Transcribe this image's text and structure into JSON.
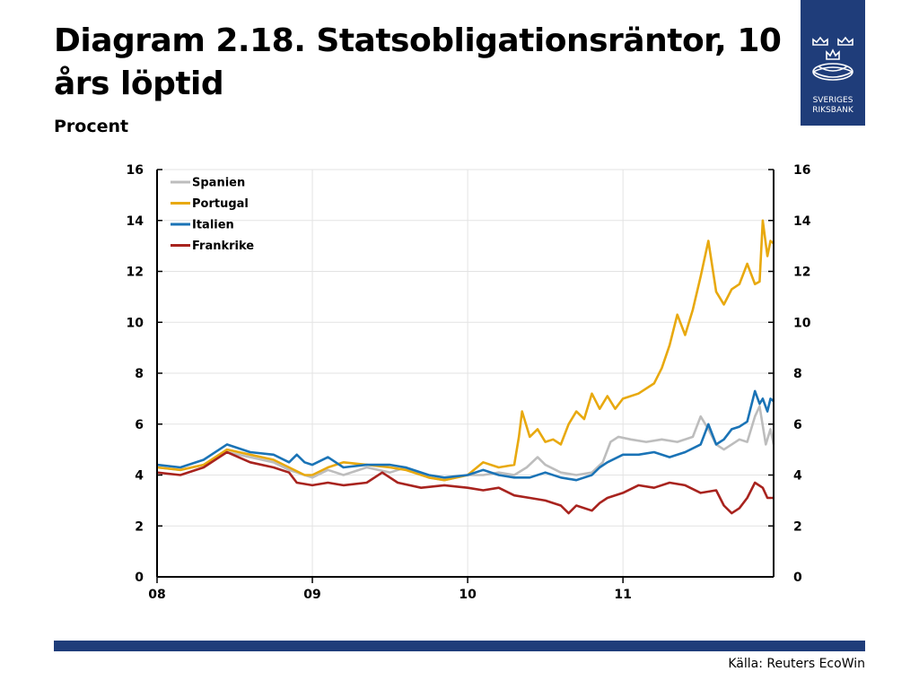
{
  "page": {
    "title": "Diagram 2.18. Statsobligationsräntor, 10 års löptid",
    "subtitle": "Procent",
    "source": "Källa: Reuters EcoWin",
    "logo": {
      "line1": "SVERIGES",
      "line2": "RIKSBANK",
      "color": "#1f3d7a",
      "icon": "crown-emblem-icon"
    }
  },
  "chart_data": {
    "type": "line",
    "title": "",
    "xlabel": "",
    "ylabel": "Procent",
    "ylim": [
      0,
      16
    ],
    "yticks": [
      0,
      2,
      4,
      6,
      8,
      10,
      12,
      14,
      16
    ],
    "xlim": [
      2008.0,
      2011.97
    ],
    "xticks": [
      {
        "value": 2008,
        "label": "08"
      },
      {
        "value": 2009,
        "label": "09"
      },
      {
        "value": 2010,
        "label": "10"
      },
      {
        "value": 2011,
        "label": "11"
      }
    ],
    "grid": true,
    "dual_y_axis": true,
    "legend": "top-left",
    "series": [
      {
        "name": "Spanien",
        "color": "#bdbdbd",
        "points": [
          [
            2008.0,
            4.3
          ],
          [
            2008.15,
            4.2
          ],
          [
            2008.3,
            4.4
          ],
          [
            2008.45,
            4.9
          ],
          [
            2008.6,
            4.7
          ],
          [
            2008.75,
            4.5
          ],
          [
            2008.85,
            4.2
          ],
          [
            2008.95,
            4.0
          ],
          [
            2009.0,
            3.9
          ],
          [
            2009.1,
            4.2
          ],
          [
            2009.2,
            4.0
          ],
          [
            2009.35,
            4.3
          ],
          [
            2009.5,
            4.1
          ],
          [
            2009.6,
            4.3
          ],
          [
            2009.75,
            3.9
          ],
          [
            2009.85,
            3.8
          ],
          [
            2010.0,
            4.0
          ],
          [
            2010.1,
            4.0
          ],
          [
            2010.2,
            4.1
          ],
          [
            2010.3,
            4.0
          ],
          [
            2010.38,
            4.3
          ],
          [
            2010.45,
            4.7
          ],
          [
            2010.5,
            4.4
          ],
          [
            2010.6,
            4.1
          ],
          [
            2010.7,
            4.0
          ],
          [
            2010.8,
            4.1
          ],
          [
            2010.87,
            4.5
          ],
          [
            2010.92,
            5.3
          ],
          [
            2010.97,
            5.5
          ],
          [
            2011.05,
            5.4
          ],
          [
            2011.15,
            5.3
          ],
          [
            2011.25,
            5.4
          ],
          [
            2011.35,
            5.3
          ],
          [
            2011.45,
            5.5
          ],
          [
            2011.5,
            6.3
          ],
          [
            2011.55,
            5.8
          ],
          [
            2011.6,
            5.2
          ],
          [
            2011.65,
            5.0
          ],
          [
            2011.7,
            5.2
          ],
          [
            2011.75,
            5.4
          ],
          [
            2011.8,
            5.3
          ],
          [
            2011.85,
            6.3
          ],
          [
            2011.88,
            6.7
          ],
          [
            2011.92,
            5.2
          ],
          [
            2011.95,
            5.8
          ],
          [
            2011.97,
            5.2
          ]
        ]
      },
      {
        "name": "Portugal",
        "color": "#e8a90f",
        "points": [
          [
            2008.0,
            4.3
          ],
          [
            2008.15,
            4.2
          ],
          [
            2008.3,
            4.4
          ],
          [
            2008.45,
            5.0
          ],
          [
            2008.6,
            4.8
          ],
          [
            2008.75,
            4.6
          ],
          [
            2008.85,
            4.3
          ],
          [
            2008.95,
            4.0
          ],
          [
            2009.0,
            4.0
          ],
          [
            2009.1,
            4.3
          ],
          [
            2009.2,
            4.5
          ],
          [
            2009.35,
            4.4
          ],
          [
            2009.5,
            4.3
          ],
          [
            2009.6,
            4.2
          ],
          [
            2009.75,
            3.9
          ],
          [
            2009.85,
            3.8
          ],
          [
            2010.0,
            4.0
          ],
          [
            2010.1,
            4.5
          ],
          [
            2010.2,
            4.3
          ],
          [
            2010.3,
            4.4
          ],
          [
            2010.33,
            5.5
          ],
          [
            2010.35,
            6.5
          ],
          [
            2010.4,
            5.5
          ],
          [
            2010.45,
            5.8
          ],
          [
            2010.5,
            5.3
          ],
          [
            2010.55,
            5.4
          ],
          [
            2010.6,
            5.2
          ],
          [
            2010.65,
            6.0
          ],
          [
            2010.7,
            6.5
          ],
          [
            2010.75,
            6.2
          ],
          [
            2010.8,
            7.2
          ],
          [
            2010.85,
            6.6
          ],
          [
            2010.9,
            7.1
          ],
          [
            2010.95,
            6.6
          ],
          [
            2011.0,
            7.0
          ],
          [
            2011.1,
            7.2
          ],
          [
            2011.2,
            7.6
          ],
          [
            2011.25,
            8.2
          ],
          [
            2011.3,
            9.1
          ],
          [
            2011.35,
            10.3
          ],
          [
            2011.4,
            9.5
          ],
          [
            2011.45,
            10.5
          ],
          [
            2011.5,
            11.8
          ],
          [
            2011.55,
            13.2
          ],
          [
            2011.6,
            11.2
          ],
          [
            2011.65,
            10.7
          ],
          [
            2011.7,
            11.3
          ],
          [
            2011.75,
            11.5
          ],
          [
            2011.8,
            12.3
          ],
          [
            2011.85,
            11.5
          ],
          [
            2011.88,
            11.6
          ],
          [
            2011.9,
            14.0
          ],
          [
            2011.93,
            12.6
          ],
          [
            2011.95,
            13.2
          ],
          [
            2011.97,
            13.1
          ]
        ]
      },
      {
        "name": "Italien",
        "color": "#1a73b6",
        "points": [
          [
            2008.0,
            4.4
          ],
          [
            2008.15,
            4.3
          ],
          [
            2008.3,
            4.6
          ],
          [
            2008.45,
            5.2
          ],
          [
            2008.6,
            4.9
          ],
          [
            2008.75,
            4.8
          ],
          [
            2008.85,
            4.5
          ],
          [
            2008.9,
            4.8
          ],
          [
            2008.95,
            4.5
          ],
          [
            2009.0,
            4.4
          ],
          [
            2009.1,
            4.7
          ],
          [
            2009.2,
            4.3
          ],
          [
            2009.35,
            4.4
          ],
          [
            2009.5,
            4.4
          ],
          [
            2009.6,
            4.3
          ],
          [
            2009.75,
            4.0
          ],
          [
            2009.85,
            3.9
          ],
          [
            2010.0,
            4.0
          ],
          [
            2010.1,
            4.2
          ],
          [
            2010.2,
            4.0
          ],
          [
            2010.3,
            3.9
          ],
          [
            2010.4,
            3.9
          ],
          [
            2010.5,
            4.1
          ],
          [
            2010.6,
            3.9
          ],
          [
            2010.7,
            3.8
          ],
          [
            2010.8,
            4.0
          ],
          [
            2010.85,
            4.3
          ],
          [
            2010.9,
            4.5
          ],
          [
            2011.0,
            4.8
          ],
          [
            2011.1,
            4.8
          ],
          [
            2011.2,
            4.9
          ],
          [
            2011.3,
            4.7
          ],
          [
            2011.4,
            4.9
          ],
          [
            2011.5,
            5.2
          ],
          [
            2011.55,
            6.0
          ],
          [
            2011.6,
            5.2
          ],
          [
            2011.65,
            5.4
          ],
          [
            2011.7,
            5.8
          ],
          [
            2011.75,
            5.9
          ],
          [
            2011.8,
            6.1
          ],
          [
            2011.85,
            7.3
          ],
          [
            2011.88,
            6.8
          ],
          [
            2011.9,
            7.0
          ],
          [
            2011.93,
            6.5
          ],
          [
            2011.95,
            7.0
          ],
          [
            2011.97,
            6.9
          ]
        ]
      },
      {
        "name": "Frankrike",
        "color": "#a8231e",
        "points": [
          [
            2008.0,
            4.1
          ],
          [
            2008.15,
            4.0
          ],
          [
            2008.3,
            4.3
          ],
          [
            2008.45,
            4.9
          ],
          [
            2008.6,
            4.5
          ],
          [
            2008.75,
            4.3
          ],
          [
            2008.85,
            4.1
          ],
          [
            2008.9,
            3.7
          ],
          [
            2009.0,
            3.6
          ],
          [
            2009.1,
            3.7
          ],
          [
            2009.2,
            3.6
          ],
          [
            2009.35,
            3.7
          ],
          [
            2009.45,
            4.1
          ],
          [
            2009.55,
            3.7
          ],
          [
            2009.7,
            3.5
          ],
          [
            2009.85,
            3.6
          ],
          [
            2010.0,
            3.5
          ],
          [
            2010.1,
            3.4
          ],
          [
            2010.2,
            3.5
          ],
          [
            2010.3,
            3.2
          ],
          [
            2010.4,
            3.1
          ],
          [
            2010.5,
            3.0
          ],
          [
            2010.6,
            2.8
          ],
          [
            2010.65,
            2.5
          ],
          [
            2010.7,
            2.8
          ],
          [
            2010.8,
            2.6
          ],
          [
            2010.85,
            2.9
          ],
          [
            2010.9,
            3.1
          ],
          [
            2011.0,
            3.3
          ],
          [
            2011.1,
            3.6
          ],
          [
            2011.2,
            3.5
          ],
          [
            2011.3,
            3.7
          ],
          [
            2011.4,
            3.6
          ],
          [
            2011.5,
            3.3
          ],
          [
            2011.6,
            3.4
          ],
          [
            2011.65,
            2.8
          ],
          [
            2011.7,
            2.5
          ],
          [
            2011.75,
            2.7
          ],
          [
            2011.8,
            3.1
          ],
          [
            2011.85,
            3.7
          ],
          [
            2011.9,
            3.5
          ],
          [
            2011.93,
            3.1
          ],
          [
            2011.97,
            3.1
          ]
        ]
      }
    ]
  }
}
